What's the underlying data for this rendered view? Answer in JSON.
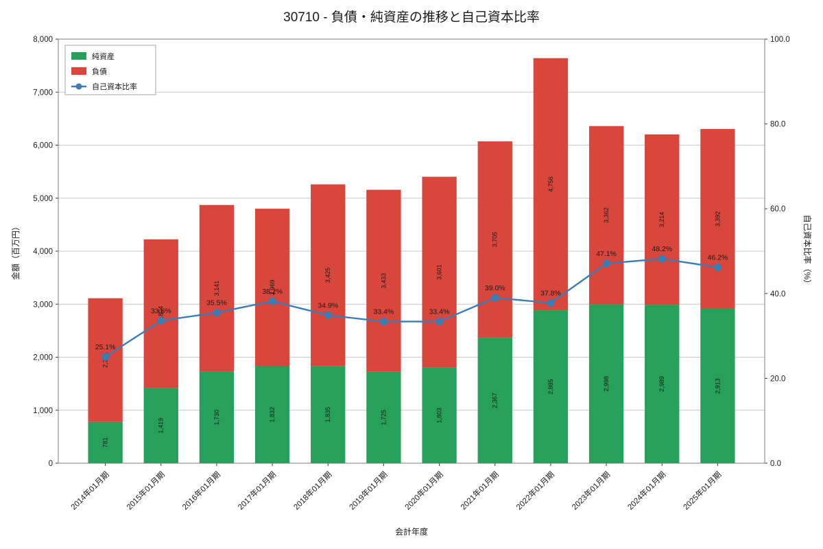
{
  "chart_data": {
    "type": "bar",
    "stacked": true,
    "title": "30710 - 負債・純資産の推移と自己資本比率",
    "xlabel": "会計年度",
    "ylabel_left": "金額（百万円）",
    "ylabel_right": "自己資本比率（%）",
    "categories": [
      "2014年01月期",
      "2015年01月期",
      "2016年01月期",
      "2017年01月期",
      "2018年01月期",
      "2019年01月期",
      "2020年01月期",
      "2021年01月期",
      "2022年01月期",
      "2023年01月期",
      "2024年01月期",
      "2025年01月期"
    ],
    "series": [
      {
        "name": "純資産",
        "type": "bar",
        "color": "#26a05a",
        "values": [
          781,
          1419,
          1730,
          1832,
          1835,
          1725,
          1803,
          2367,
          2885,
          2998,
          2989,
          2913
        ]
      },
      {
        "name": "負債",
        "type": "bar",
        "color": "#d9463c",
        "values": [
          2331,
          2804,
          3141,
          2969,
          3425,
          3433,
          3601,
          3705,
          4756,
          3362,
          3214,
          3392
        ]
      },
      {
        "name": "自己資本比率",
        "type": "line",
        "color": "#3a7db5",
        "unit": "%",
        "values": [
          25.1,
          33.6,
          35.5,
          38.2,
          34.9,
          33.4,
          33.4,
          39.0,
          37.8,
          47.1,
          48.2,
          46.2
        ]
      }
    ],
    "y_left": {
      "min": 0,
      "max": 8000,
      "tick_step": 1000
    },
    "y_right": {
      "min": 0,
      "max": 100,
      "tick_step": 20
    },
    "legend_position": "upper-left",
    "grid": "horizontal",
    "colors": {
      "gridline": "#c9c9c9",
      "spine": "#7a7a7a",
      "bar_label": "#111111",
      "ratio_label": "#4f7aa8"
    }
  }
}
